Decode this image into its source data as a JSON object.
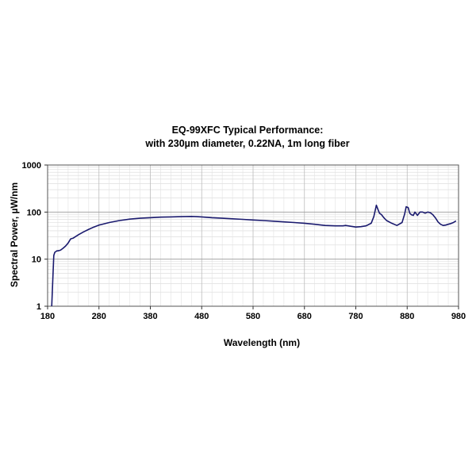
{
  "chart_data": {
    "type": "line",
    "title": "EQ-99XFC Typical Performance:",
    "subtitle": "with 230µm diameter, 0.22NA, 1m long fiber",
    "xlabel": "Wavelength (nm)",
    "ylabel": "Spectral Power, µW/nm",
    "xlim": [
      180,
      980
    ],
    "ylim": [
      1,
      1000
    ],
    "yscale": "log",
    "grid": true,
    "x_ticks": [
      "180",
      "280",
      "380",
      "480",
      "580",
      "680",
      "780",
      "880",
      "980"
    ],
    "y_ticks": [
      "1",
      "10",
      "100",
      "1000"
    ],
    "line_color": "#1a1a6e",
    "series": [
      {
        "x": [
          188,
          190,
          192,
          194,
          196,
          198,
          200,
          205,
          210,
          215,
          220,
          225,
          230,
          240,
          250,
          260,
          270,
          280,
          300,
          320,
          340,
          360,
          380,
          400,
          420,
          440,
          460,
          470,
          480,
          500,
          520,
          540,
          560,
          580,
          600,
          620,
          640,
          660,
          680,
          700,
          720,
          740,
          755,
          760,
          765,
          770,
          780,
          790,
          800,
          810,
          815,
          820,
          823,
          826,
          830,
          835,
          840,
          850,
          860,
          870,
          875,
          878,
          882,
          885,
          888,
          892,
          895,
          900,
          905,
          910,
          915,
          920,
          925,
          930,
          935,
          940,
          945,
          950,
          955,
          960,
          965,
          970,
          975
        ],
        "y": [
          1.0,
          3.5,
          12,
          14,
          14.5,
          15,
          15,
          15.5,
          17,
          19,
          22,
          27,
          28,
          33,
          38,
          43,
          48,
          53,
          60,
          66,
          71,
          74,
          76,
          78,
          79,
          80,
          81,
          80,
          79,
          76,
          74,
          72,
          70,
          68,
          66,
          64,
          62,
          60,
          58,
          55,
          52,
          51,
          51,
          52,
          51,
          50,
          48,
          49,
          51,
          58,
          80,
          140,
          115,
          95,
          88,
          75,
          66,
          58,
          52,
          60,
          90,
          130,
          125,
          95,
          88,
          85,
          100,
          85,
          100,
          100,
          95,
          100,
          97,
          88,
          75,
          62,
          55,
          52,
          53,
          55,
          57,
          60,
          65
        ]
      }
    ]
  }
}
